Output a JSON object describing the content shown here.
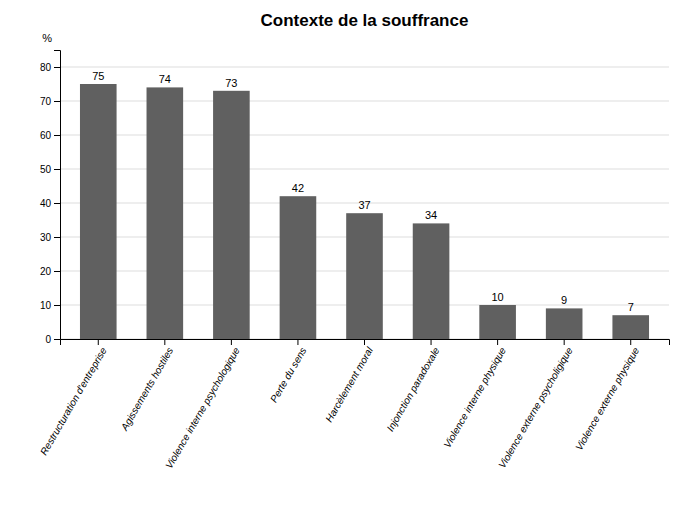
{
  "chart_data": {
    "type": "bar",
    "title": "Contexte de la souffrance",
    "ylabel": "%",
    "categories": [
      "Restructuration d'entreprise",
      "Agissements hostiles",
      "Violence interne psychologique",
      "Perte du sens",
      "Harcèlement moral",
      "Injonction paradoxale",
      "Violence interne physique",
      "Violence externe psycholigique",
      "Violence externe physique"
    ],
    "values": [
      75,
      74,
      73,
      42,
      37,
      34,
      10,
      9,
      7
    ],
    "color": "#606060",
    "ylim": [
      0,
      85
    ],
    "yticks": [
      0,
      10,
      20,
      30,
      40,
      50,
      60,
      70,
      80
    ],
    "grid": true,
    "data_labels": true
  }
}
